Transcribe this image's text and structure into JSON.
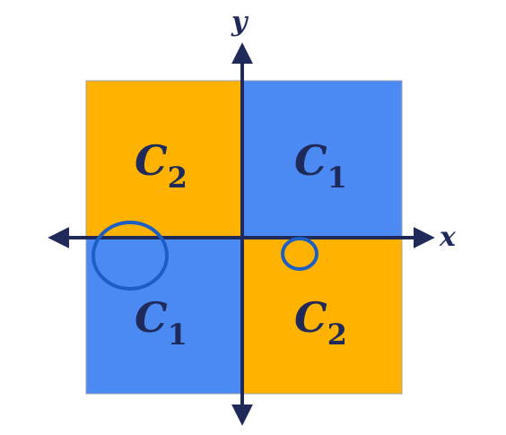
{
  "axes": {
    "x_label": "x",
    "y_label": "y"
  },
  "quadrants": {
    "top_left": {
      "letter": "C",
      "subscript": "2"
    },
    "top_right": {
      "letter": "C",
      "subscript": "1"
    },
    "bottom_left": {
      "letter": "C",
      "subscript": "1"
    },
    "bottom_right": {
      "letter": "C",
      "subscript": "2"
    }
  },
  "colors": {
    "orange": "#FFB300",
    "blue": "#4A8AF2",
    "axis": "#1F2A5A",
    "circle": "#1C5EC4",
    "label": "#1F2A5A"
  }
}
